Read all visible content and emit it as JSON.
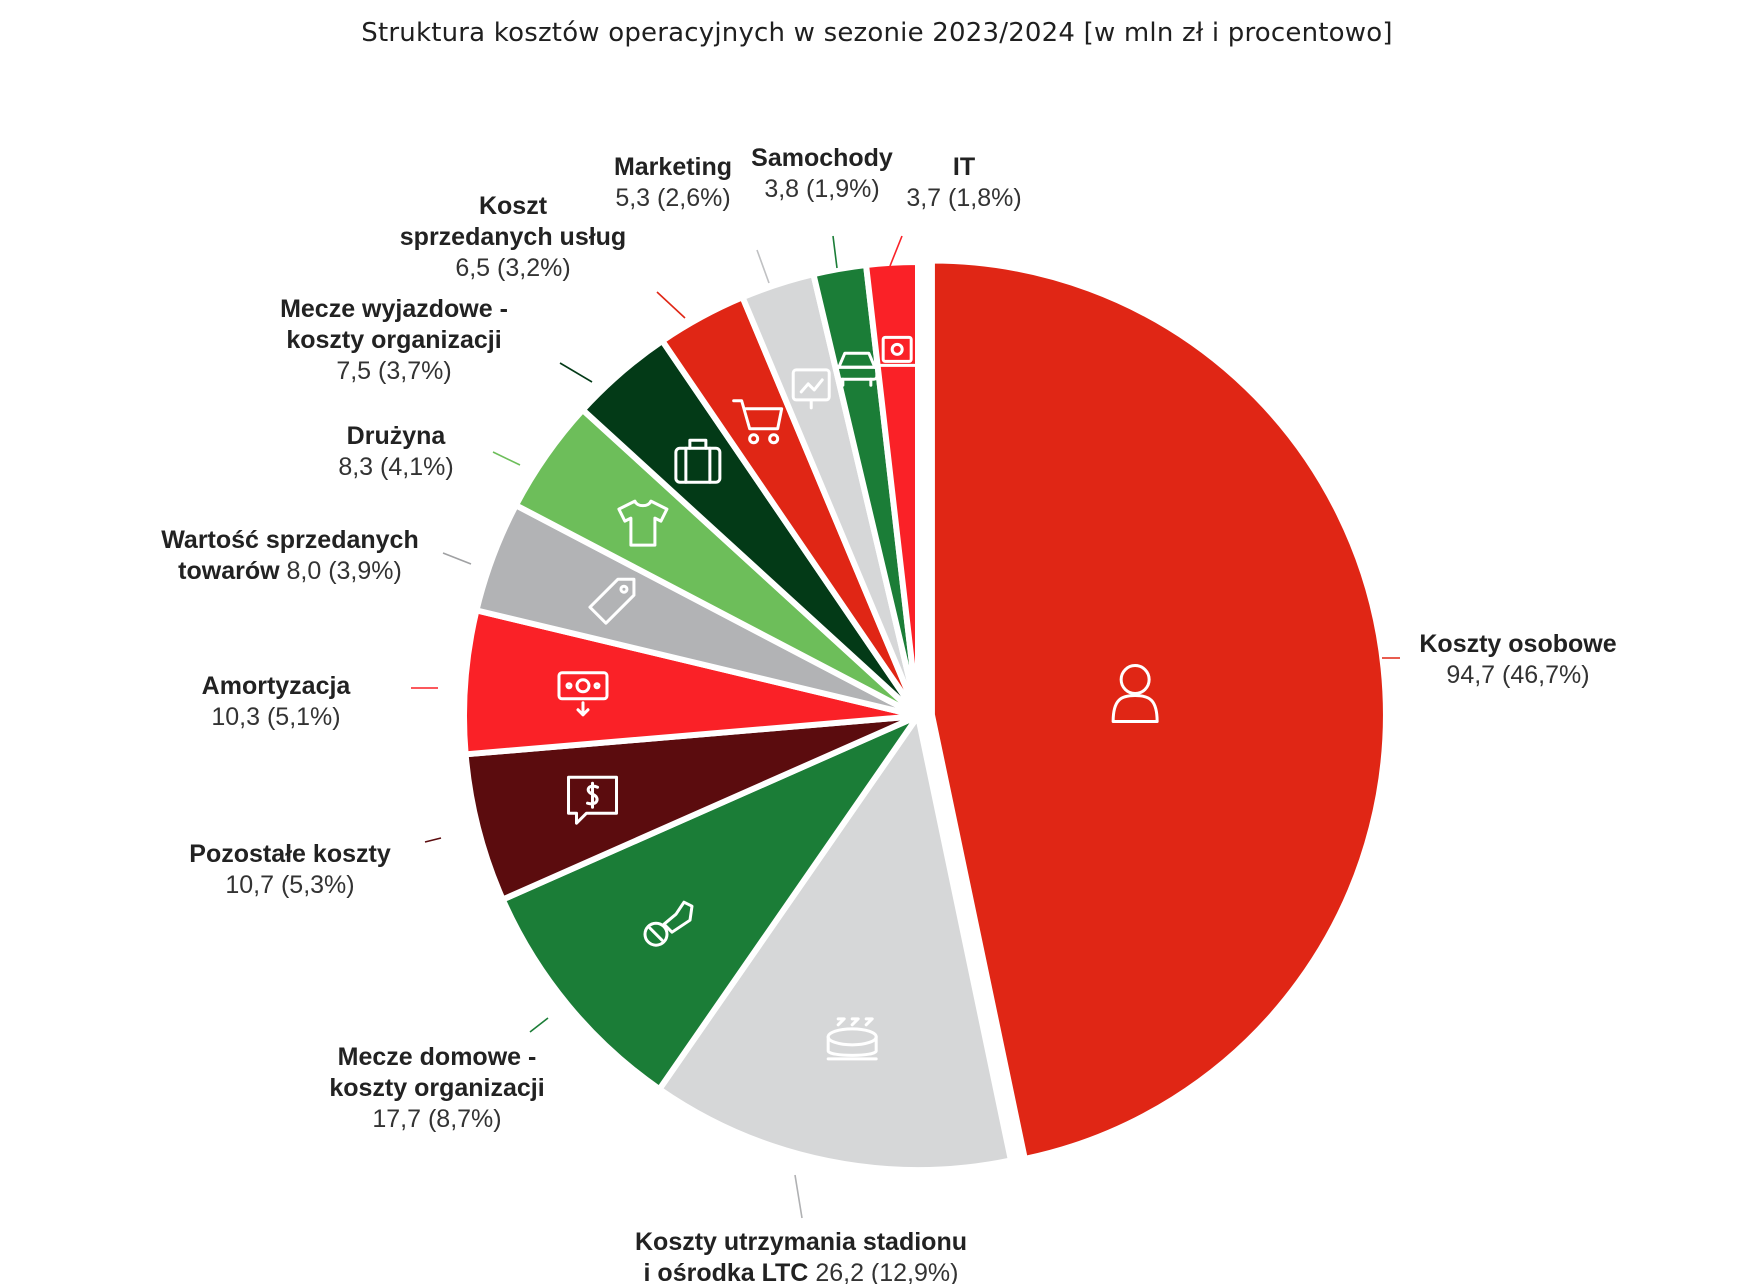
{
  "title": "Struktura kosztów operacyjnych w sezonie 2023/2024 [w mln zł i procentowo]",
  "chart_data": {
    "type": "pie",
    "title": "Struktura kosztów operacyjnych w sezonie 2023/2024 [w mln zł i procentowo]",
    "unit": "mln zł",
    "slices": [
      {
        "label_lines": [
          "Koszty osobowe"
        ],
        "value": 94.7,
        "value_text": "94,7 (46,7%)",
        "percent": 46.7,
        "color": "#e02615",
        "icon": "person-icon"
      },
      {
        "label_lines": [
          "Koszty utrzymania stadionu",
          "i ośrodka LTC"
        ],
        "value": 26.2,
        "value_text": "26,2 (12,9%)",
        "percent": 12.9,
        "color": "#d6d7d8",
        "icon": "stadium-icon"
      },
      {
        "label_lines": [
          "Mecze domowe -",
          "koszty organizacji"
        ],
        "value": 17.7,
        "value_text": "17,7 (8,7%)",
        "percent": 8.7,
        "color": "#1b7d37",
        "icon": "football-boot-icon"
      },
      {
        "label_lines": [
          "Pozostałe koszty"
        ],
        "value": 10.7,
        "value_text": "10,7 (5,3%)",
        "percent": 5.3,
        "color": "#5b0c0e",
        "icon": "dollar-chat-icon"
      },
      {
        "label_lines": [
          "Amortyzacja"
        ],
        "value": 10.3,
        "value_text": "10,3 (5,1%)",
        "percent": 5.1,
        "color": "#fa2127",
        "icon": "money-down-icon"
      },
      {
        "label_lines": [
          "Wartość sprzedanych",
          "towarów"
        ],
        "value": 8.0,
        "value_text": "8,0 (3,9%)",
        "percent": 3.9,
        "color": "#b2b3b5",
        "icon": "price-tag-icon"
      },
      {
        "label_lines": [
          "Drużyna"
        ],
        "value": 8.3,
        "value_text": "8,3 (4,1%)",
        "percent": 4.1,
        "color": "#6dbe5a",
        "icon": "jersey-icon"
      },
      {
        "label_lines": [
          "Mecze wyjazdowe -",
          "koszty organizacji"
        ],
        "value": 7.5,
        "value_text": "7,5 (3,7%)",
        "percent": 3.7,
        "color": "#033a17",
        "icon": "suitcase-icon"
      },
      {
        "label_lines": [
          "Koszt",
          "sprzedanych usług"
        ],
        "value": 6.5,
        "value_text": "6,5 (3,2%)",
        "percent": 3.2,
        "color": "#e02615",
        "icon": "shopping-cart-icon"
      },
      {
        "label_lines": [
          "Marketing"
        ],
        "value": 5.3,
        "value_text": "5,3 (2,6%)",
        "percent": 2.6,
        "color": "#d6d7d8",
        "icon": "presentation-chart-icon"
      },
      {
        "label_lines": [
          "Samochody"
        ],
        "value": 3.8,
        "value_text": "3,8 (1,9%)",
        "percent": 1.9,
        "color": "#1b7d37",
        "icon": "car-icon"
      },
      {
        "label_lines": [
          "IT"
        ],
        "value": 3.7,
        "value_text": "3,7 (1,8%)",
        "percent": 1.8,
        "color": "#fa2127",
        "icon": "laptop-settings-icon"
      }
    ]
  }
}
